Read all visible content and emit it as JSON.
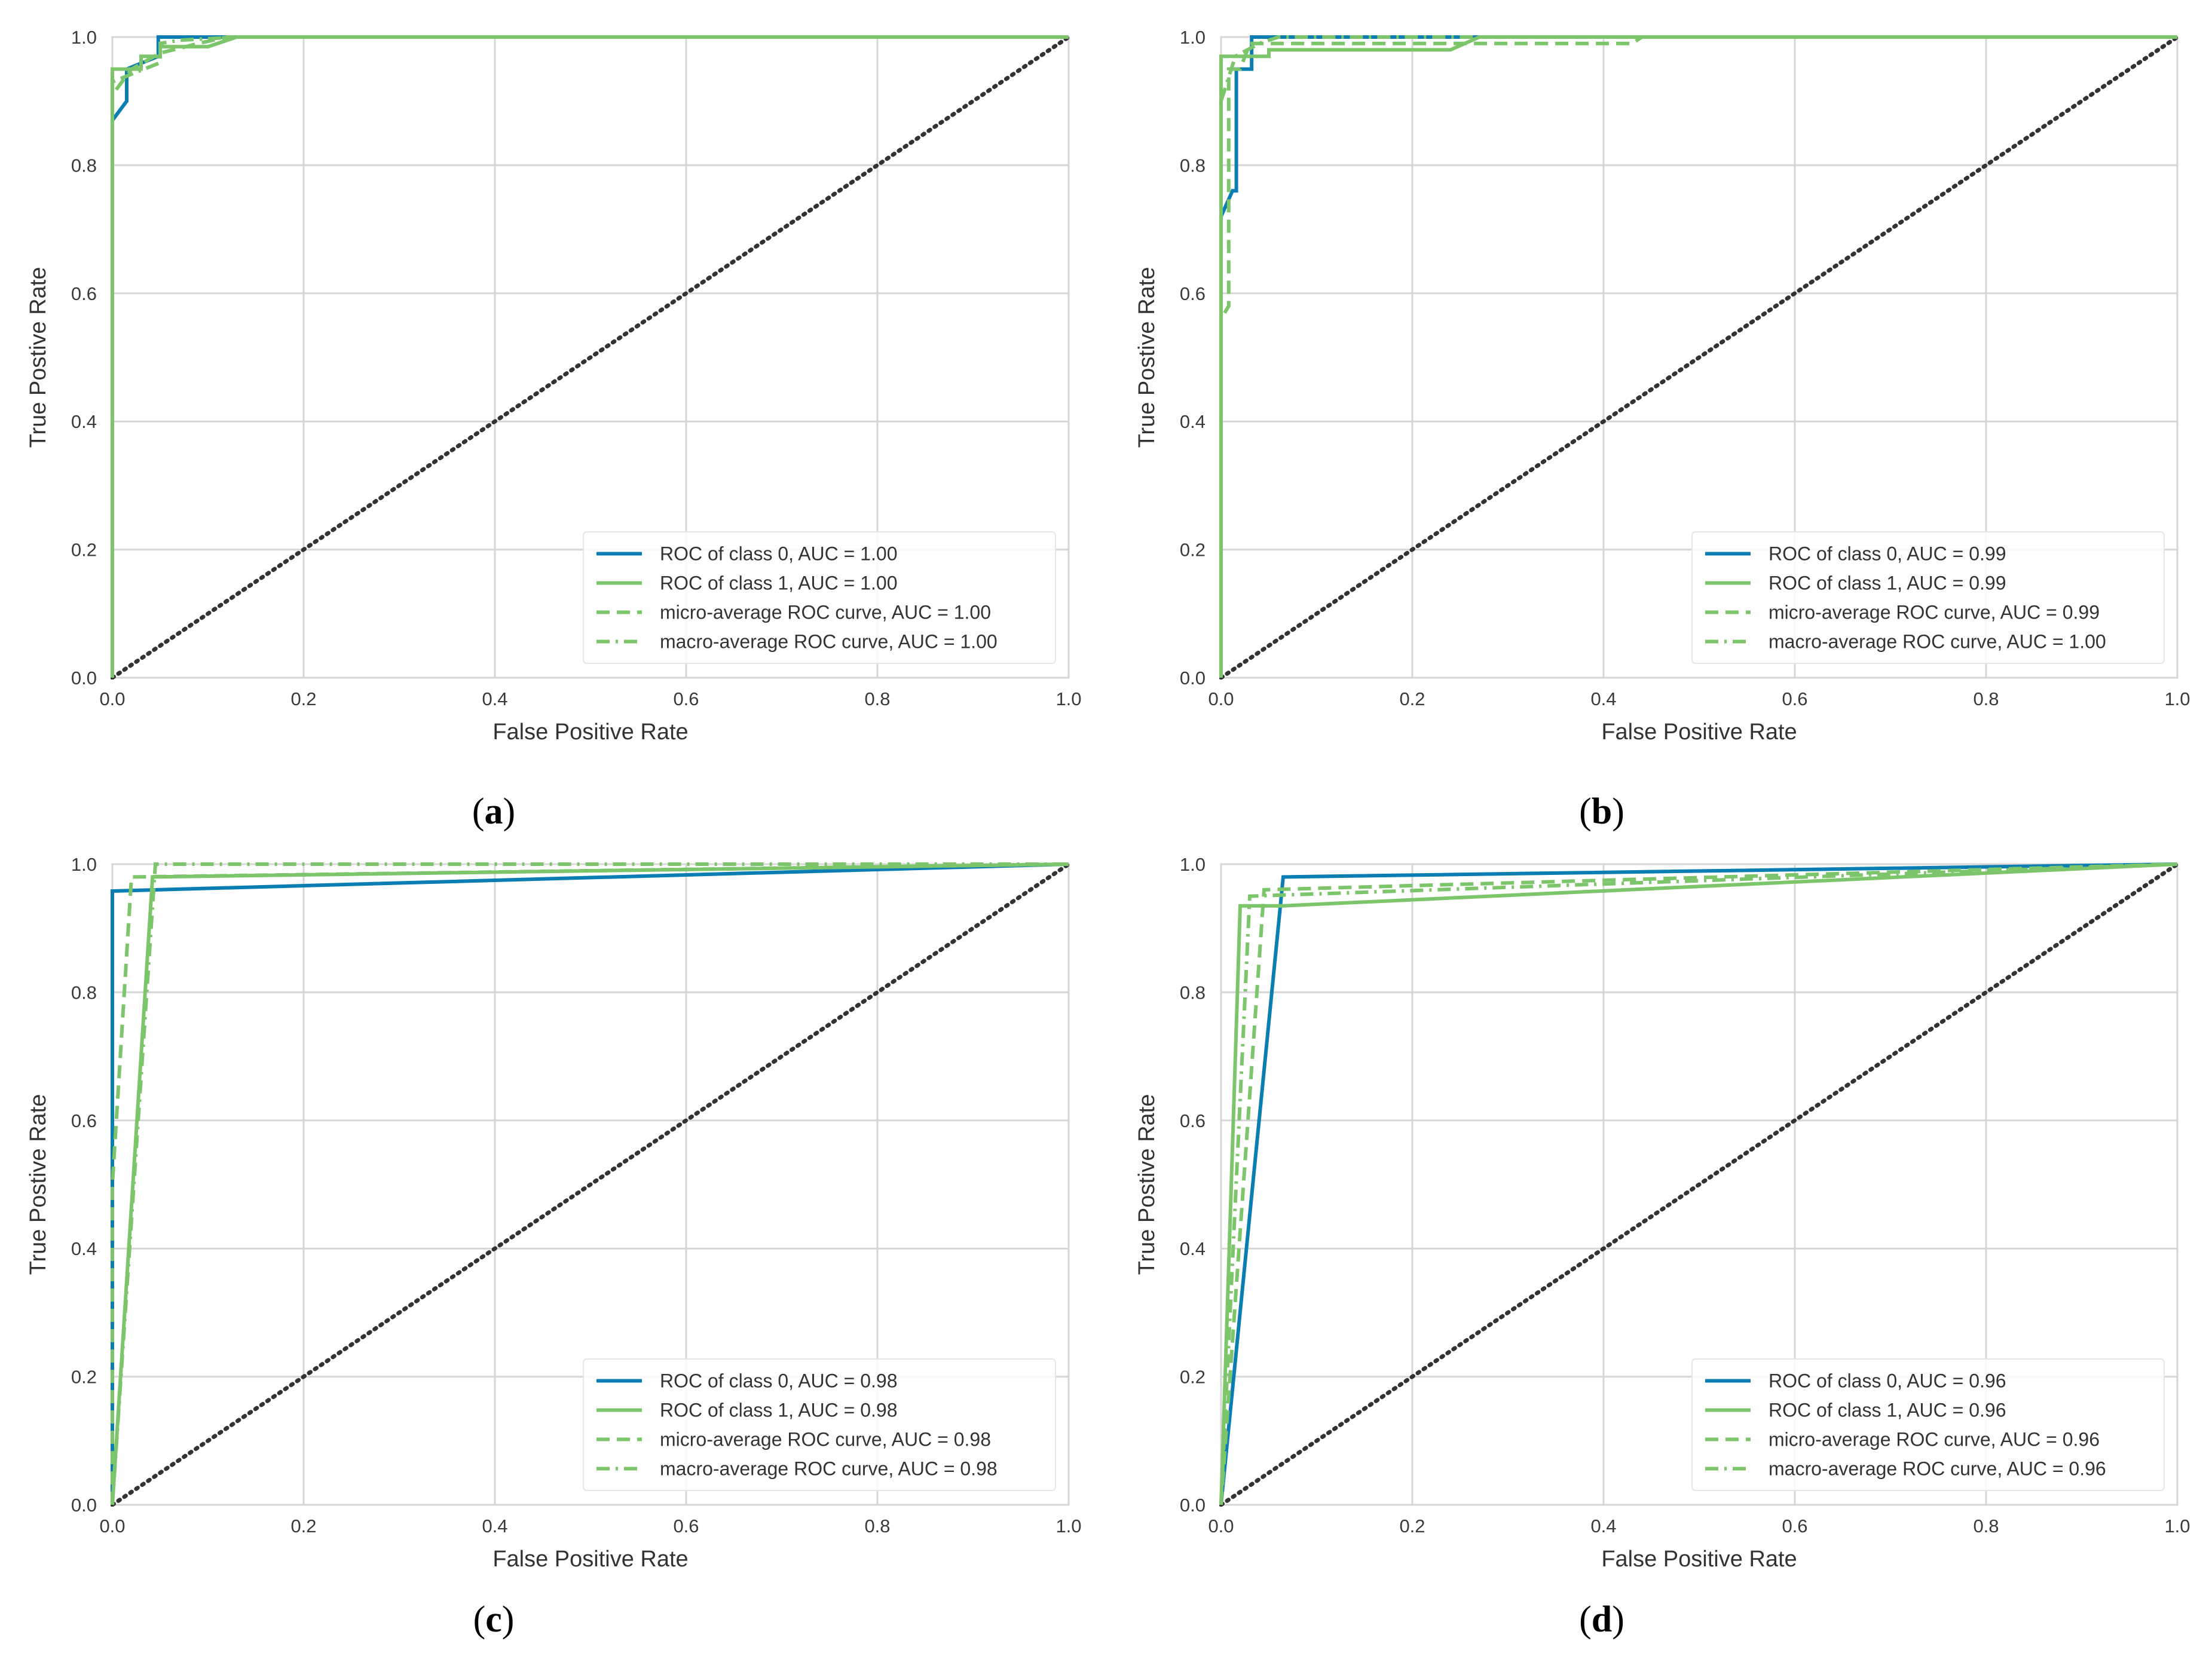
{
  "figure": {
    "panels": [
      {
        "caption_letter": "a"
      },
      {
        "caption_letter": "b"
      },
      {
        "caption_letter": "c"
      },
      {
        "caption_letter": "d"
      }
    ]
  },
  "colors": {
    "class0": "#0a7db3",
    "class1": "#7cc56a",
    "grid": "#d6d6d6",
    "diagonal": "#333333",
    "axes_border": "#cccccc"
  },
  "chart_data": [
    {
      "type": "line",
      "panel": "a",
      "xlabel": "False Positive Rate",
      "ylabel": "True Postive Rate",
      "xlim": [
        0,
        1
      ],
      "ylim": [
        0,
        1
      ],
      "xticks": [
        "0.0",
        "0.2",
        "0.4",
        "0.6",
        "0.8",
        "1.0"
      ],
      "yticks": [
        "0.0",
        "0.2",
        "0.4",
        "0.6",
        "0.8",
        "1.0"
      ],
      "grid": true,
      "legend_position": "lower-right",
      "series": [
        {
          "name": "ROC of class 0, AUC = 1.00",
          "style": "solid",
          "color_key": "class0",
          "x": [
            0,
            0,
            0.015,
            0.015,
            0.048,
            0.048,
            1
          ],
          "y": [
            0,
            0.87,
            0.9,
            0.95,
            0.97,
            1.0,
            1.0
          ]
        },
        {
          "name": "ROC of class 1, AUC = 1.00",
          "style": "solid",
          "color_key": "class1",
          "x": [
            0,
            0,
            0.03,
            0.03,
            0.05,
            0.05,
            0.1,
            0.13,
            1
          ],
          "y": [
            0,
            0.95,
            0.95,
            0.97,
            0.97,
            0.985,
            0.985,
            1.0,
            1.0
          ]
        },
        {
          "name": "micro-average ROC curve, AUC = 1.00",
          "style": "dashed",
          "color_key": "class1",
          "x": [
            0,
            0,
            0.02,
            0.05,
            0.09,
            0.12,
            1
          ],
          "y": [
            0,
            0.91,
            0.95,
            0.975,
            0.99,
            1.0,
            1.0
          ]
        },
        {
          "name": "macro-average ROC curve, AUC = 1.00",
          "style": "dashdot",
          "color_key": "class1",
          "x": [
            0,
            0,
            0.05,
            0.05,
            0.07,
            0.13,
            1
          ],
          "y": [
            0,
            0.93,
            0.96,
            0.99,
            0.995,
            1.0,
            1.0
          ]
        },
        {
          "name": "chance",
          "style": "dotted",
          "color_key": "diagonal",
          "in_legend": false,
          "x": [
            0,
            1
          ],
          "y": [
            0,
            1
          ]
        }
      ]
    },
    {
      "type": "line",
      "panel": "b",
      "xlabel": "False Positive Rate",
      "ylabel": "True Postive Rate",
      "xlim": [
        0,
        1
      ],
      "ylim": [
        0,
        1
      ],
      "xticks": [
        "0.0",
        "0.2",
        "0.4",
        "0.6",
        "0.8",
        "1.0"
      ],
      "yticks": [
        "0.0",
        "0.2",
        "0.4",
        "0.6",
        "0.8",
        "1.0"
      ],
      "grid": true,
      "legend_position": "lower-right",
      "series": [
        {
          "name": "ROC of class 0, AUC = 0.99",
          "style": "solid",
          "color_key": "class0",
          "x": [
            0,
            0,
            0.012,
            0.016,
            0.016,
            0.032,
            0.032,
            1
          ],
          "y": [
            0,
            0.72,
            0.76,
            0.76,
            0.95,
            0.95,
            1.0,
            1.0
          ]
        },
        {
          "name": "ROC of class 1, AUC = 0.99",
          "style": "solid",
          "color_key": "class1",
          "x": [
            0,
            0,
            0.02,
            0.03,
            0.05,
            0.05,
            0.24,
            0.27,
            1
          ],
          "y": [
            0,
            0.97,
            0.97,
            0.97,
            0.97,
            0.98,
            0.98,
            1.0,
            1.0
          ]
        },
        {
          "name": "micro-average ROC curve, AUC = 0.99",
          "style": "dashed",
          "color_key": "class1",
          "x": [
            0,
            0,
            0.008,
            0.008,
            0.02,
            0.03,
            0.3,
            0.43,
            0.44,
            1
          ],
          "y": [
            0,
            0.56,
            0.58,
            0.95,
            0.95,
            0.99,
            0.99,
            0.99,
            1.0,
            1.0
          ]
        },
        {
          "name": "macro-average ROC curve, AUC = 1.00",
          "style": "dashdot",
          "color_key": "class1",
          "x": [
            0,
            0,
            0.015,
            0.04,
            0.06,
            1
          ],
          "y": [
            0,
            0.9,
            0.97,
            0.99,
            1.0,
            1.0
          ]
        },
        {
          "name": "chance",
          "style": "dotted",
          "color_key": "diagonal",
          "in_legend": false,
          "x": [
            0,
            1
          ],
          "y": [
            0,
            1
          ]
        }
      ]
    },
    {
      "type": "line",
      "panel": "c",
      "xlabel": "False Positive Rate",
      "ylabel": "True Postive Rate",
      "xlim": [
        0,
        1
      ],
      "ylim": [
        0,
        1
      ],
      "xticks": [
        "0.0",
        "0.2",
        "0.4",
        "0.6",
        "0.8",
        "1.0"
      ],
      "yticks": [
        "0.0",
        "0.2",
        "0.4",
        "0.6",
        "0.8",
        "1.0"
      ],
      "grid": true,
      "legend_position": "lower-right",
      "series": [
        {
          "name": "ROC of class 0, AUC = 0.98",
          "style": "solid",
          "color_key": "class0",
          "x": [
            0,
            0,
            1
          ],
          "y": [
            0,
            0.958,
            1.0
          ]
        },
        {
          "name": "ROC of class 1, AUC = 0.98",
          "style": "solid",
          "color_key": "class1",
          "x": [
            0,
            0.042,
            1
          ],
          "y": [
            0,
            0.98,
            1.0
          ]
        },
        {
          "name": "micro-average ROC curve, AUC = 0.98",
          "style": "dashed",
          "color_key": "class1",
          "x": [
            0,
            0,
            0.02,
            1
          ],
          "y": [
            0,
            0.5,
            0.98,
            1.0
          ]
        },
        {
          "name": "macro-average ROC curve, AUC = 0.98",
          "style": "dashdot",
          "color_key": "class1",
          "x": [
            0,
            0.045,
            1
          ],
          "y": [
            0,
            1.0,
            1.0
          ]
        },
        {
          "name": "chance",
          "style": "dotted",
          "color_key": "diagonal",
          "in_legend": false,
          "x": [
            0,
            1
          ],
          "y": [
            0,
            1
          ]
        }
      ]
    },
    {
      "type": "line",
      "panel": "d",
      "xlabel": "False Positive Rate",
      "ylabel": "True Postive Rate",
      "xlim": [
        0,
        1
      ],
      "ylim": [
        0,
        1
      ],
      "xticks": [
        "0.0",
        "0.2",
        "0.4",
        "0.6",
        "0.8",
        "1.0"
      ],
      "yticks": [
        "0.0",
        "0.2",
        "0.4",
        "0.6",
        "0.8",
        "1.0"
      ],
      "grid": true,
      "legend_position": "lower-right",
      "series": [
        {
          "name": "ROC of class 0, AUC = 0.96",
          "style": "solid",
          "color_key": "class0",
          "x": [
            0,
            0.065,
            1
          ],
          "y": [
            0,
            0.98,
            1.0
          ]
        },
        {
          "name": "ROC of class 1, AUC = 0.96",
          "style": "solid",
          "color_key": "class1",
          "x": [
            0,
            0.02,
            0.065,
            1
          ],
          "y": [
            0,
            0.935,
            0.935,
            1.0
          ]
        },
        {
          "name": "micro-average ROC curve, AUC = 0.96",
          "style": "dashed",
          "color_key": "class1",
          "x": [
            0,
            0.045,
            1
          ],
          "y": [
            0,
            0.96,
            1.0
          ]
        },
        {
          "name": "macro-average ROC curve, AUC = 0.96",
          "style": "dashdot",
          "color_key": "class1",
          "x": [
            0,
            0.03,
            1
          ],
          "y": [
            0,
            0.95,
            1.0
          ]
        },
        {
          "name": "chance",
          "style": "dotted",
          "color_key": "diagonal",
          "in_legend": false,
          "x": [
            0,
            1
          ],
          "y": [
            0,
            1
          ]
        }
      ]
    }
  ]
}
